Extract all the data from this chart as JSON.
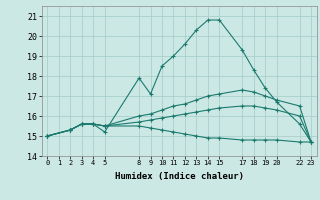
{
  "xlabel": "Humidex (Indice chaleur)",
  "ylabel": "",
  "bg_color": "#cce8e4",
  "grid_color": "#aad0cc",
  "line_color": "#1a7a6e",
  "xlim": [
    -0.5,
    23.5
  ],
  "ylim": [
    14,
    21.5
  ],
  "yticks": [
    14,
    15,
    16,
    17,
    18,
    19,
    20,
    21
  ],
  "xtick_positions": [
    0,
    1,
    2,
    3,
    4,
    5,
    8,
    9,
    10,
    11,
    12,
    13,
    14,
    15,
    17,
    18,
    19,
    20,
    22,
    23
  ],
  "xtick_labels": [
    "0",
    "1",
    "2",
    "3",
    "4",
    "5",
    "8",
    "9",
    "10",
    "11",
    "12",
    "13",
    "14",
    "15",
    "17",
    "18",
    "19",
    "20",
    "22",
    "23"
  ],
  "lines": [
    {
      "x": [
        0,
        2,
        3,
        4,
        5,
        8,
        9,
        10,
        11,
        12,
        13,
        14,
        15,
        17,
        18,
        19,
        20,
        22,
        23
      ],
      "y": [
        15.0,
        15.3,
        15.6,
        15.6,
        15.2,
        17.9,
        17.1,
        18.5,
        19.0,
        19.6,
        20.3,
        20.8,
        20.8,
        19.3,
        18.3,
        17.4,
        16.7,
        15.6,
        14.7
      ]
    },
    {
      "x": [
        0,
        2,
        3,
        4,
        5,
        8,
        9,
        10,
        11,
        12,
        13,
        14,
        15,
        17,
        18,
        19,
        20,
        22,
        23
      ],
      "y": [
        15.0,
        15.3,
        15.6,
        15.6,
        15.5,
        16.0,
        16.1,
        16.3,
        16.5,
        16.6,
        16.8,
        17.0,
        17.1,
        17.3,
        17.2,
        17.0,
        16.8,
        16.5,
        14.7
      ]
    },
    {
      "x": [
        0,
        2,
        3,
        4,
        5,
        8,
        9,
        10,
        11,
        12,
        13,
        14,
        15,
        17,
        18,
        19,
        20,
        22,
        23
      ],
      "y": [
        15.0,
        15.3,
        15.6,
        15.6,
        15.5,
        15.7,
        15.8,
        15.9,
        16.0,
        16.1,
        16.2,
        16.3,
        16.4,
        16.5,
        16.5,
        16.4,
        16.3,
        16.0,
        14.7
      ]
    },
    {
      "x": [
        0,
        2,
        3,
        4,
        5,
        8,
        9,
        10,
        11,
        12,
        13,
        14,
        15,
        17,
        18,
        19,
        20,
        22,
        23
      ],
      "y": [
        15.0,
        15.3,
        15.6,
        15.6,
        15.5,
        15.5,
        15.4,
        15.3,
        15.2,
        15.1,
        15.0,
        14.9,
        14.9,
        14.8,
        14.8,
        14.8,
        14.8,
        14.7,
        14.7
      ]
    }
  ]
}
